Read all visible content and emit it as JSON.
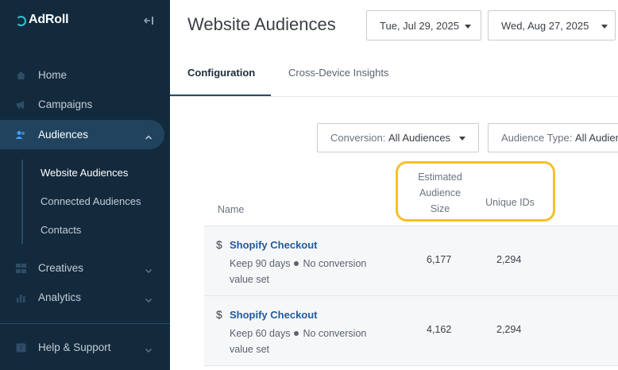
{
  "app": {
    "brand": "AdRoll"
  },
  "sidebar": {
    "items": [
      {
        "label": "Home",
        "icon": "home-icon"
      },
      {
        "label": "Campaigns",
        "icon": "megaphone-icon"
      },
      {
        "label": "Audiences",
        "icon": "users-icon"
      },
      {
        "label": "Creatives",
        "icon": "grid-icon"
      },
      {
        "label": "Analytics",
        "icon": "bar-chart-icon"
      },
      {
        "label": "Help & Support",
        "icon": "help-icon"
      }
    ],
    "sub_items": [
      "Website Audiences",
      "Connected Audiences",
      "Contacts"
    ]
  },
  "header": {
    "title": "Website Audiences",
    "start_date": "Tue, Jul 29, 2025",
    "end_date": "Wed, Aug 27, 2025"
  },
  "tabs": [
    "Configuration",
    "Cross-Device Insights"
  ],
  "filters": {
    "conversion_key": "Conversion:",
    "conversion_value": "All Audiences",
    "type_key": "Audience Type:",
    "type_value": "All Audiences"
  },
  "table": {
    "headers": {
      "name": "Name",
      "est_size_1": "Estimated",
      "est_size_2": "Audience",
      "est_size_3": "Size",
      "unique_ids": "Unique IDs"
    },
    "rows": [
      {
        "currency": "$",
        "name": "Shopify Checkout",
        "keep": "Keep 90 days",
        "conv": "No conversion value set",
        "size": "6,177",
        "ids": "2,294"
      },
      {
        "currency": "$",
        "name": "Shopify Checkout",
        "keep": "Keep 60 days",
        "conv": "No conversion value set",
        "size": "4,162",
        "ids": "2,294"
      }
    ]
  },
  "colors": {
    "sidebar_bg": "#132a3d",
    "active_bg": "#21435e",
    "link": "#1f5a9e",
    "highlight": "#f7c02a",
    "logo_accent": "#2cc5d2"
  }
}
